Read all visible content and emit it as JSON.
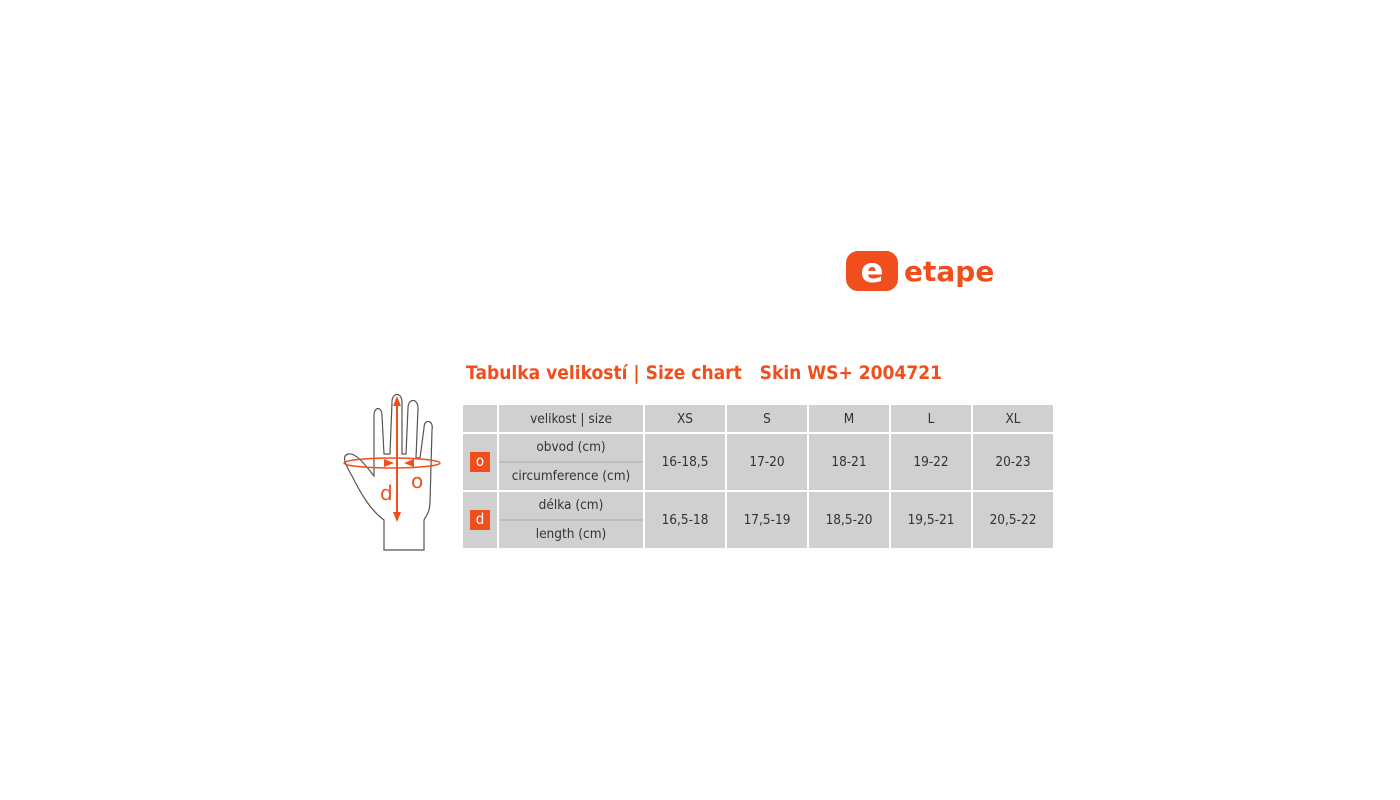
{
  "brand": {
    "logo_text": "etape",
    "logo_mark": "e",
    "color": "#f04e1c"
  },
  "title": "Tabulka velikostí | Size chart   Skin WS+ 2004721",
  "hand_labels": {
    "length": "d",
    "circumference": "o"
  },
  "table": {
    "header_label": "velikost | size",
    "sizes": [
      "XS",
      "S",
      "M",
      "L",
      "XL"
    ],
    "rows": [
      {
        "badge": "o",
        "label_cz": "obvod (cm)",
        "label_en": "circumference (cm)",
        "values": [
          "16-18,5",
          "17-20",
          "18-21",
          "19-22",
          "20-23"
        ]
      },
      {
        "badge": "d",
        "label_cz": "délka (cm)",
        "label_en": "length (cm)",
        "values": [
          "16,5-18",
          "17,5-19",
          "18,5-20",
          "19,5-21",
          "20,5-22"
        ]
      }
    ]
  }
}
